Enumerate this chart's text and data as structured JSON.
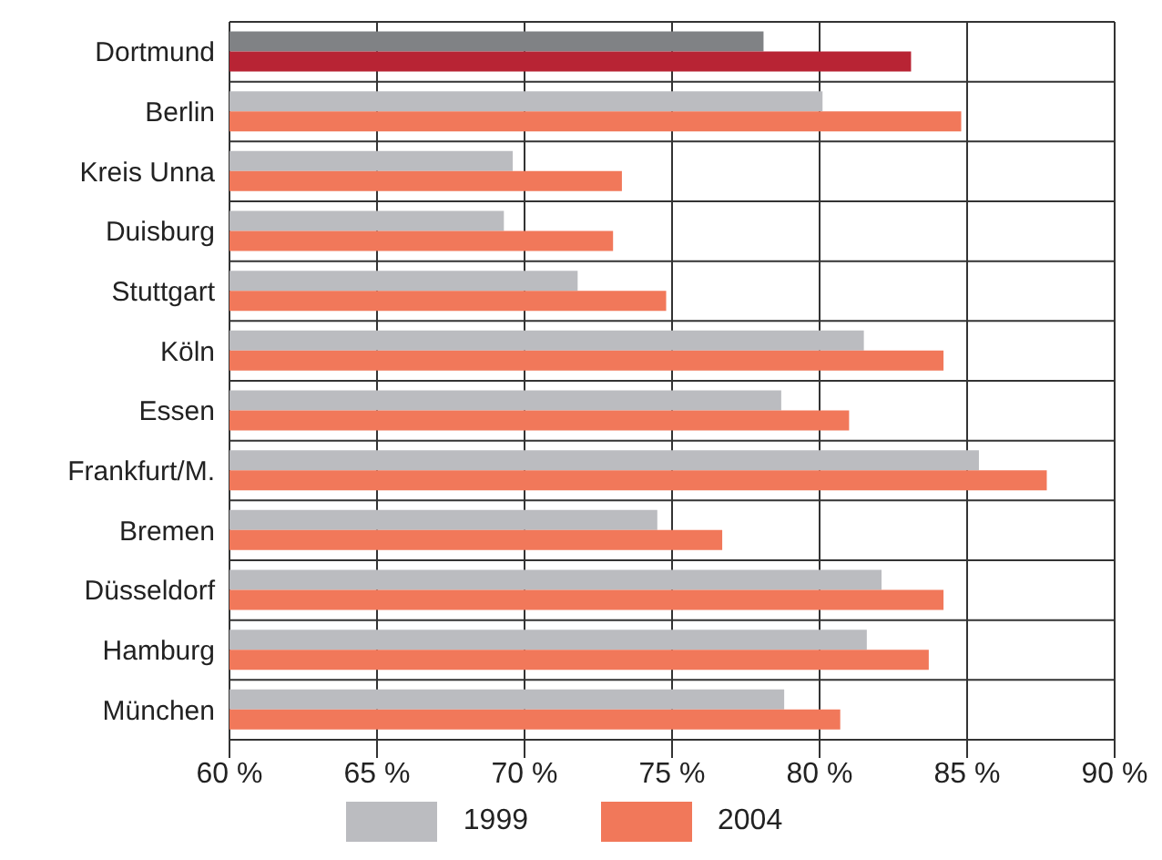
{
  "chart_data": {
    "type": "bar",
    "orientation": "horizontal",
    "categories": [
      "Dortmund",
      "Berlin",
      "Kreis Unna",
      "Duisburg",
      "Stuttgart",
      "Köln",
      "Essen",
      "Frankfurt/M.",
      "Bremen",
      "Düsseldorf",
      "Hamburg",
      "München"
    ],
    "series": [
      {
        "name": "1999",
        "color": "#bbbcc0",
        "colors": [
          "#808285",
          "#bbbcc0",
          "#bbbcc0",
          "#bbbcc0",
          "#bbbcc0",
          "#bbbcc0",
          "#bbbcc0",
          "#bbbcc0",
          "#bbbcc0",
          "#bbbcc0",
          "#bbbcc0",
          "#bbbcc0"
        ],
        "values": [
          78.1,
          80.1,
          69.6,
          69.3,
          71.8,
          81.5,
          78.7,
          85.4,
          74.5,
          82.1,
          81.6,
          78.8
        ]
      },
      {
        "name": "2004",
        "color": "#f1785a",
        "colors": [
          "#b82434",
          "#f1785a",
          "#f1785a",
          "#f1785a",
          "#f1785a",
          "#f1785a",
          "#f1785a",
          "#f1785a",
          "#f1785a",
          "#f1785a",
          "#f1785a",
          "#f1785a"
        ],
        "values": [
          83.1,
          84.8,
          73.3,
          73.0,
          74.8,
          84.2,
          81.0,
          87.7,
          76.7,
          84.2,
          83.7,
          80.7
        ]
      }
    ],
    "xlim": [
      60,
      90
    ],
    "xticks": [
      {
        "value": 60,
        "label": "60 %"
      },
      {
        "value": 65,
        "label": "65 %"
      },
      {
        "value": 70,
        "label": "70 %"
      },
      {
        "value": 75,
        "label": "75 %"
      },
      {
        "value": 80,
        "label": "80 %"
      },
      {
        "value": 85,
        "label": "85 %"
      },
      {
        "value": 90,
        "label": "90 %"
      }
    ],
    "grid": true,
    "legend": "bottom"
  }
}
